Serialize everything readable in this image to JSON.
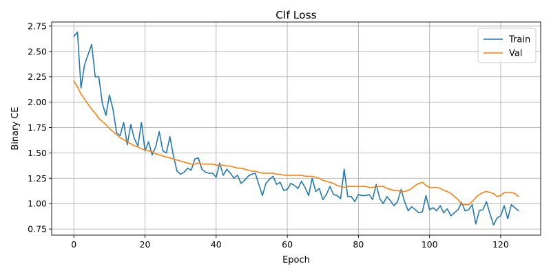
{
  "chart_data": {
    "type": "line",
    "title": "Clf Loss",
    "xlabel": "Epoch",
    "ylabel": "Binary CE",
    "xlim": [
      -6.25,
      131.25
    ],
    "ylim": [
      0.69,
      2.79
    ],
    "xticks": [
      0,
      20,
      40,
      60,
      80,
      100,
      120
    ],
    "yticks": [
      0.75,
      1.0,
      1.25,
      1.5,
      1.75,
      2.0,
      2.25,
      2.5,
      2.75
    ],
    "grid": true,
    "legend_position": "top-right",
    "series": [
      {
        "name": "Train",
        "color": "#1f77b4",
        "x": [
          0,
          1,
          2,
          3,
          4,
          5,
          6,
          7,
          8,
          9,
          10,
          11,
          12,
          13,
          14,
          15,
          16,
          17,
          18,
          19,
          20,
          21,
          22,
          23,
          24,
          25,
          26,
          27,
          28,
          29,
          30,
          31,
          32,
          33,
          34,
          35,
          36,
          37,
          38,
          39,
          40,
          41,
          42,
          43,
          44,
          45,
          46,
          47,
          48,
          49,
          50,
          51,
          52,
          53,
          54,
          55,
          56,
          57,
          58,
          59,
          60,
          61,
          62,
          63,
          64,
          65,
          66,
          67,
          68,
          69,
          70,
          71,
          72,
          73,
          74,
          75,
          76,
          77,
          78,
          79,
          80,
          81,
          82,
          83,
          84,
          85,
          86,
          87,
          88,
          89,
          90,
          91,
          92,
          93,
          94,
          95,
          96,
          97,
          98,
          99,
          100,
          101,
          102,
          103,
          104,
          105,
          106,
          107,
          108,
          109,
          110,
          111,
          112,
          113,
          114,
          115,
          116,
          117,
          118,
          119,
          120,
          121,
          122,
          123,
          124,
          125
        ],
        "values": [
          2.65,
          2.69,
          2.14,
          2.37,
          2.47,
          2.57,
          2.25,
          2.25,
          1.99,
          1.87,
          2.07,
          1.93,
          1.7,
          1.67,
          1.8,
          1.58,
          1.78,
          1.64,
          1.57,
          1.8,
          1.52,
          1.61,
          1.48,
          1.56,
          1.71,
          1.52,
          1.5,
          1.66,
          1.47,
          1.32,
          1.29,
          1.31,
          1.35,
          1.33,
          1.44,
          1.45,
          1.34,
          1.31,
          1.3,
          1.3,
          1.26,
          1.4,
          1.28,
          1.34,
          1.3,
          1.25,
          1.28,
          1.2,
          1.23,
          1.27,
          1.29,
          1.3,
          1.19,
          1.08,
          1.2,
          1.24,
          1.27,
          1.19,
          1.21,
          1.13,
          1.14,
          1.2,
          1.18,
          1.15,
          1.22,
          1.16,
          1.08,
          1.25,
          1.12,
          1.15,
          1.04,
          1.09,
          1.17,
          1.09,
          1.08,
          1.05,
          1.34,
          1.07,
          1.07,
          1.02,
          1.09,
          1.08,
          1.08,
          1.09,
          1.04,
          1.19,
          1.05,
          1.0,
          1.07,
          1.03,
          0.98,
          1.02,
          1.14,
          1.02,
          0.93,
          0.97,
          0.94,
          0.91,
          0.92,
          1.08,
          0.94,
          0.96,
          0.93,
          0.98,
          0.91,
          0.95,
          0.88,
          0.91,
          0.94,
          1.01,
          0.93,
          0.94,
          0.99,
          0.8,
          0.93,
          0.94,
          1.02,
          0.9,
          0.79,
          0.86,
          0.88,
          0.98,
          0.85,
          0.99,
          0.96,
          0.93
        ]
      },
      {
        "name": "Val",
        "color": "#ff7f0e",
        "x": [
          0,
          1,
          2,
          3,
          4,
          5,
          6,
          7,
          8,
          9,
          10,
          11,
          12,
          13,
          14,
          15,
          16,
          17,
          18,
          19,
          20,
          21,
          22,
          23,
          24,
          25,
          26,
          27,
          28,
          29,
          30,
          31,
          32,
          33,
          34,
          35,
          36,
          37,
          38,
          39,
          40,
          41,
          42,
          43,
          44,
          45,
          46,
          47,
          48,
          49,
          50,
          51,
          52,
          53,
          54,
          55,
          56,
          57,
          58,
          59,
          60,
          61,
          62,
          63,
          64,
          65,
          66,
          67,
          68,
          69,
          70,
          71,
          72,
          73,
          74,
          75,
          76,
          77,
          78,
          79,
          80,
          81,
          82,
          83,
          84,
          85,
          86,
          87,
          88,
          89,
          90,
          91,
          92,
          93,
          94,
          95,
          96,
          97,
          98,
          99,
          100,
          101,
          102,
          103,
          104,
          105,
          106,
          107,
          108,
          109,
          110,
          111,
          112,
          113,
          114,
          115,
          116,
          117,
          118,
          119,
          120,
          121,
          122,
          123,
          124,
          125
        ],
        "values": [
          2.21,
          2.15,
          2.08,
          2.03,
          1.98,
          1.93,
          1.89,
          1.84,
          1.81,
          1.78,
          1.74,
          1.71,
          1.68,
          1.65,
          1.63,
          1.61,
          1.59,
          1.57,
          1.56,
          1.54,
          1.53,
          1.52,
          1.51,
          1.49,
          1.48,
          1.47,
          1.46,
          1.45,
          1.44,
          1.43,
          1.42,
          1.41,
          1.4,
          1.39,
          1.39,
          1.4,
          1.39,
          1.39,
          1.39,
          1.39,
          1.38,
          1.38,
          1.38,
          1.37,
          1.37,
          1.36,
          1.35,
          1.35,
          1.34,
          1.33,
          1.32,
          1.32,
          1.31,
          1.3,
          1.3,
          1.3,
          1.3,
          1.29,
          1.29,
          1.28,
          1.28,
          1.28,
          1.28,
          1.28,
          1.28,
          1.27,
          1.27,
          1.27,
          1.26,
          1.25,
          1.23,
          1.22,
          1.21,
          1.2,
          1.18,
          1.17,
          1.16,
          1.17,
          1.17,
          1.17,
          1.17,
          1.17,
          1.17,
          1.16,
          1.16,
          1.17,
          1.17,
          1.17,
          1.15,
          1.14,
          1.13,
          1.13,
          1.12,
          1.12,
          1.13,
          1.15,
          1.18,
          1.2,
          1.21,
          1.18,
          1.16,
          1.16,
          1.16,
          1.15,
          1.13,
          1.12,
          1.1,
          1.07,
          1.04,
          1.0,
          0.99,
          0.99,
          1.02,
          1.06,
          1.09,
          1.11,
          1.12,
          1.11,
          1.1,
          1.07,
          1.08,
          1.11,
          1.11,
          1.11,
          1.1,
          1.07
        ]
      }
    ]
  }
}
